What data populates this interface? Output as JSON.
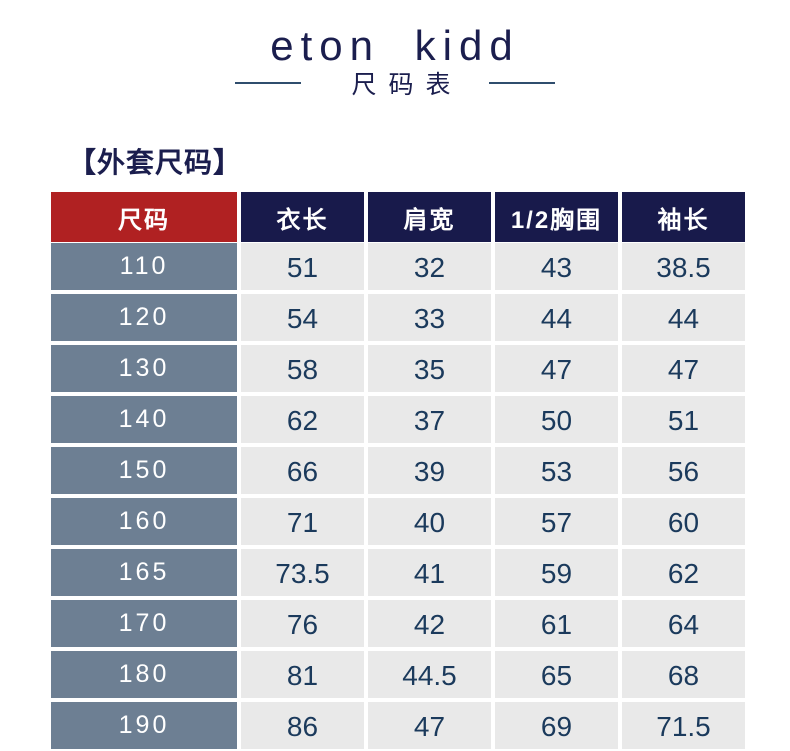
{
  "brand": {
    "logo": "eton kidd",
    "subtitle": "尺码表"
  },
  "section": {
    "title": "【外套尺码】"
  },
  "table": {
    "headers": [
      "尺码",
      "衣长",
      "肩宽",
      "1/2胸围",
      "袖长"
    ],
    "rows": [
      [
        "110",
        "51",
        "32",
        "43",
        "38.5"
      ],
      [
        "120",
        "54",
        "33",
        "44",
        "44"
      ],
      [
        "130",
        "58",
        "35",
        "47",
        "47"
      ],
      [
        "140",
        "62",
        "37",
        "50",
        "51"
      ],
      [
        "150",
        "66",
        "39",
        "53",
        "56"
      ],
      [
        "160",
        "71",
        "40",
        "57",
        "60"
      ],
      [
        "165",
        "73.5",
        "41",
        "59",
        "62"
      ],
      [
        "170",
        "76",
        "42",
        "61",
        "64"
      ],
      [
        "180",
        "81",
        "44.5",
        "65",
        "68"
      ],
      [
        "190",
        "86",
        "47",
        "69",
        "71.5"
      ]
    ]
  },
  "colors": {
    "brand_navy": "#1b1e4e",
    "header_navy": "#181a4b",
    "header_red": "#b02122",
    "size_column_slate": "#6d7f93",
    "data_cell_gray": "#e9e9e9",
    "data_text_navy": "#1b3a5c",
    "divider_line": "#2f4d6d"
  }
}
